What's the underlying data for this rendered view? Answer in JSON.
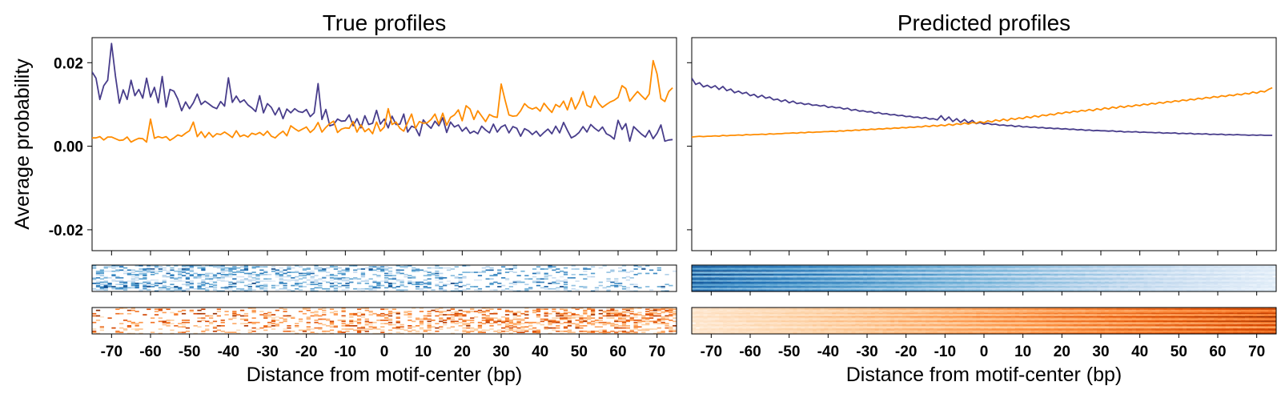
{
  "figure": {
    "panels": [
      {
        "title": "True profiles"
      },
      {
        "title": "Predicted profiles"
      }
    ],
    "ylabel": "Average probability",
    "xlabel": "Distance from motif-center (bp)"
  },
  "chart_data": [
    {
      "type": "line",
      "title": "True profiles",
      "xlabel": "Distance from motif-center (bp)",
      "ylabel": "Average probability",
      "xlim": [
        -75,
        75
      ],
      "ylim": [
        -0.025,
        0.026
      ],
      "xticks": [
        -70,
        -60,
        -50,
        -40,
        -30,
        -20,
        -10,
        0,
        10,
        20,
        30,
        40,
        50,
        60,
        70
      ],
      "yticks": [
        -0.02,
        0.0,
        0.02
      ],
      "ytick_labels": [
        "-0.02",
        "0.00",
        "0.02"
      ],
      "grid": false,
      "x": [
        -75,
        -74,
        -73,
        -72,
        -71,
        -70,
        -69,
        -68,
        -67,
        -66,
        -65,
        -64,
        -63,
        -62,
        -61,
        -60,
        -59,
        -58,
        -57,
        -56,
        -55,
        -54,
        -53,
        -52,
        -51,
        -50,
        -49,
        -48,
        -47,
        -46,
        -45,
        -44,
        -43,
        -42,
        -41,
        -40,
        -39,
        -38,
        -37,
        -36,
        -35,
        -34,
        -33,
        -32,
        -31,
        -30,
        -29,
        -28,
        -27,
        -26,
        -25,
        -24,
        -23,
        -22,
        -21,
        -20,
        -19,
        -18,
        -17,
        -16,
        -15,
        -14,
        -13,
        -12,
        -11,
        -10,
        -9,
        -8,
        -7,
        -6,
        -5,
        -4,
        -3,
        -2,
        -1,
        0,
        1,
        2,
        3,
        4,
        5,
        6,
        7,
        8,
        9,
        10,
        11,
        12,
        13,
        14,
        15,
        16,
        17,
        18,
        19,
        20,
        21,
        22,
        23,
        24,
        25,
        26,
        27,
        28,
        29,
        30,
        31,
        32,
        33,
        34,
        35,
        36,
        37,
        38,
        39,
        40,
        41,
        42,
        43,
        44,
        45,
        46,
        47,
        48,
        49,
        50,
        51,
        52,
        53,
        54,
        55,
        56,
        57,
        58,
        59,
        60,
        61,
        62,
        63,
        64,
        65,
        66,
        67,
        68,
        69,
        70,
        71,
        72,
        73,
        74
      ],
      "series": [
        {
          "color": "#483d8b",
          "values": [
            0.0178,
            0.0163,
            0.0112,
            0.0145,
            0.0158,
            0.0246,
            0.0168,
            0.0103,
            0.0135,
            0.0112,
            0.0158,
            0.0121,
            0.0136,
            0.0115,
            0.0163,
            0.0118,
            0.0141,
            0.0104,
            0.0167,
            0.0094,
            0.0136,
            0.0132,
            0.0113,
            0.0085,
            0.0106,
            0.009,
            0.0104,
            0.0125,
            0.01,
            0.0108,
            0.0101,
            0.0094,
            0.009,
            0.0107,
            0.0096,
            0.0164,
            0.0105,
            0.012,
            0.0105,
            0.0111,
            0.0099,
            0.0092,
            0.0083,
            0.0121,
            0.008,
            0.0102,
            0.0093,
            0.0075,
            0.0092,
            0.0066,
            0.0089,
            0.008,
            0.009,
            0.0083,
            0.0081,
            0.0088,
            0.0071,
            0.008,
            0.015,
            0.0064,
            0.0088,
            0.0049,
            0.0052,
            0.0065,
            0.006,
            0.0061,
            0.0075,
            0.0049,
            0.0066,
            0.0044,
            0.0073,
            0.0052,
            0.0055,
            0.0086,
            0.0053,
            0.0065,
            0.0044,
            0.0072,
            0.0052,
            0.0053,
            0.0077,
            0.0034,
            0.0048,
            0.0044,
            0.0025,
            0.0063,
            0.0052,
            0.0043,
            0.006,
            0.0049,
            0.0068,
            0.0033,
            0.0058,
            0.0046,
            0.0051,
            0.0036,
            0.0045,
            0.0031,
            0.0036,
            0.003,
            0.0048,
            0.0039,
            0.0032,
            0.0053,
            0.0034,
            0.0046,
            0.0051,
            0.0032,
            0.0047,
            0.0043,
            0.0024,
            0.0042,
            0.0037,
            0.0028,
            0.0036,
            0.0024,
            0.0033,
            0.0041,
            0.003,
            0.0048,
            0.0032,
            0.0057,
            0.0038,
            0.002,
            0.0025,
            0.0033,
            0.0047,
            0.0034,
            0.0052,
            0.0043,
            0.0036,
            0.0046,
            0.003,
            0.0025,
            0.0017,
            0.0062,
            0.004,
            0.0054,
            0.0012,
            0.0047,
            0.0038,
            0.0029,
            0.0022,
            0.0038,
            0.0018,
            0.0031,
            0.0051,
            0.0012,
            0.0015,
            0.0016
          ]
        },
        {
          "color": "#ff8c00",
          "values": [
            0.002,
            0.002,
            0.0023,
            0.0015,
            0.0022,
            0.0022,
            0.0018,
            0.0014,
            0.0015,
            0.0022,
            0.001,
            0.0015,
            0.0019,
            0.0018,
            0.001,
            0.0065,
            0.0019,
            0.0023,
            0.002,
            0.0023,
            0.0014,
            0.002,
            0.0027,
            0.0024,
            0.0031,
            0.0037,
            0.0058,
            0.0023,
            0.0035,
            0.0021,
            0.0033,
            0.0022,
            0.003,
            0.0028,
            0.0034,
            0.0028,
            0.0021,
            0.0037,
            0.0023,
            0.0027,
            0.0022,
            0.0031,
            0.0028,
            0.0033,
            0.0026,
            0.0036,
            0.0024,
            0.002,
            0.0029,
            0.0036,
            0.0025,
            0.0049,
            0.0042,
            0.0036,
            0.0041,
            0.0046,
            0.0033,
            0.0041,
            0.0057,
            0.0034,
            0.0045,
            0.0054,
            0.006,
            0.0033,
            0.0041,
            0.0044,
            0.0043,
            0.0059,
            0.0034,
            0.0051,
            0.0035,
            0.0042,
            0.003,
            0.0058,
            0.0036,
            0.0046,
            0.009,
            0.0052,
            0.0058,
            0.0043,
            0.0036,
            0.0057,
            0.0077,
            0.0043,
            0.0059,
            0.0055,
            0.0056,
            0.0064,
            0.0077,
            0.0053,
            0.0079,
            0.005,
            0.0069,
            0.0075,
            0.0087,
            0.0061,
            0.0097,
            0.0089,
            0.0064,
            0.0085,
            0.0072,
            0.0059,
            0.0076,
            0.0071,
            0.0069,
            0.0149,
            0.011,
            0.0075,
            0.0072,
            0.0073,
            0.0085,
            0.0102,
            0.0093,
            0.0089,
            0.0093,
            0.0084,
            0.0103,
            0.0091,
            0.0081,
            0.01,
            0.0094,
            0.0108,
            0.0087,
            0.0116,
            0.0089,
            0.0106,
            0.0131,
            0.0098,
            0.0093,
            0.012,
            0.0103,
            0.0093,
            0.01,
            0.0106,
            0.011,
            0.0117,
            0.0145,
            0.0138,
            0.0108,
            0.012,
            0.0131,
            0.0121,
            0.0112,
            0.0125,
            0.0205,
            0.0173,
            0.0114,
            0.0107,
            0.0131,
            0.014
          ]
        }
      ]
    },
    {
      "type": "line",
      "title": "Predicted profiles",
      "xlabel": "Distance from motif-center (bp)",
      "xlim": [
        -75,
        75
      ],
      "ylim": [
        -0.025,
        0.026
      ],
      "xticks": [
        -70,
        -60,
        -50,
        -40,
        -30,
        -20,
        -10,
        0,
        10,
        20,
        30,
        40,
        50,
        60,
        70
      ],
      "grid": false,
      "x": [
        -75,
        -74,
        -73,
        -72,
        -71,
        -70,
        -69,
        -68,
        -67,
        -66,
        -65,
        -64,
        -63,
        -62,
        -61,
        -60,
        -59,
        -58,
        -57,
        -56,
        -55,
        -54,
        -53,
        -52,
        -51,
        -50,
        -49,
        -48,
        -47,
        -46,
        -45,
        -44,
        -43,
        -42,
        -41,
        -40,
        -39,
        -38,
        -37,
        -36,
        -35,
        -34,
        -33,
        -32,
        -31,
        -30,
        -29,
        -28,
        -27,
        -26,
        -25,
        -24,
        -23,
        -22,
        -21,
        -20,
        -19,
        -18,
        -17,
        -16,
        -15,
        -14,
        -13,
        -12,
        -11,
        -10,
        -9,
        -8,
        -7,
        -6,
        -5,
        -4,
        -3,
        -2,
        -1,
        0,
        1,
        2,
        3,
        4,
        5,
        6,
        7,
        8,
        9,
        10,
        11,
        12,
        13,
        14,
        15,
        16,
        17,
        18,
        19,
        20,
        21,
        22,
        23,
        24,
        25,
        26,
        27,
        28,
        29,
        30,
        31,
        32,
        33,
        34,
        35,
        36,
        37,
        38,
        39,
        40,
        41,
        42,
        43,
        44,
        45,
        46,
        47,
        48,
        49,
        50,
        51,
        52,
        53,
        54,
        55,
        56,
        57,
        58,
        59,
        60,
        61,
        62,
        63,
        64,
        65,
        66,
        67,
        68,
        69,
        70,
        71,
        72,
        73,
        74
      ],
      "series": [
        {
          "color": "#483d8b",
          "values": [
            0.0163,
            0.0148,
            0.0152,
            0.0142,
            0.0146,
            0.014,
            0.0145,
            0.0136,
            0.0143,
            0.0133,
            0.0137,
            0.0128,
            0.0132,
            0.0126,
            0.0129,
            0.0121,
            0.0124,
            0.0117,
            0.0122,
            0.0115,
            0.0118,
            0.0111,
            0.0113,
            0.0107,
            0.0111,
            0.0104,
            0.0108,
            0.0102,
            0.0104,
            0.01,
            0.0102,
            0.0098,
            0.0099,
            0.0096,
            0.0098,
            0.0093,
            0.0095,
            0.0092,
            0.0093,
            0.0089,
            0.0091,
            0.0086,
            0.0088,
            0.0084,
            0.0085,
            0.0082,
            0.0083,
            0.0079,
            0.0081,
            0.0077,
            0.0078,
            0.0075,
            0.0076,
            0.0073,
            0.0074,
            0.0071,
            0.0072,
            0.0069,
            0.007,
            0.0067,
            0.0069,
            0.0065,
            0.0066,
            0.0063,
            0.0073,
            0.0062,
            0.007,
            0.0059,
            0.0066,
            0.0057,
            0.0064,
            0.0056,
            0.0062,
            0.0054,
            0.0057,
            0.0053,
            0.0055,
            0.0052,
            0.0053,
            0.005,
            0.0051,
            0.0049,
            0.005,
            0.0047,
            0.0049,
            0.0046,
            0.0047,
            0.0045,
            0.0046,
            0.0044,
            0.0045,
            0.0043,
            0.0044,
            0.0042,
            0.0043,
            0.0041,
            0.0042,
            0.004,
            0.0041,
            0.0039,
            0.004,
            0.0038,
            0.0039,
            0.0037,
            0.0038,
            0.0037,
            0.0037,
            0.0036,
            0.0037,
            0.0035,
            0.0036,
            0.0034,
            0.0035,
            0.0034,
            0.0035,
            0.0033,
            0.0034,
            0.0033,
            0.0033,
            0.0032,
            0.0033,
            0.0031,
            0.0032,
            0.0031,
            0.0032,
            0.003,
            0.0031,
            0.003,
            0.0031,
            0.0029,
            0.003,
            0.0029,
            0.003,
            0.0028,
            0.0029,
            0.0028,
            0.0029,
            0.0027,
            0.0028,
            0.0027,
            0.0028,
            0.0027,
            0.0027,
            0.0026,
            0.0027,
            0.0026,
            0.0027,
            0.0026,
            0.0026,
            0.0026
          ]
        },
        {
          "color": "#ff8c00",
          "values": [
            0.0022,
            0.0023,
            0.0024,
            0.0023,
            0.0024,
            0.0024,
            0.0025,
            0.0024,
            0.0026,
            0.0025,
            0.0026,
            0.0026,
            0.0027,
            0.0026,
            0.0028,
            0.0027,
            0.0028,
            0.0028,
            0.0029,
            0.0028,
            0.003,
            0.0029,
            0.003,
            0.003,
            0.0031,
            0.0031,
            0.0032,
            0.0031,
            0.0033,
            0.0032,
            0.0034,
            0.0033,
            0.0034,
            0.0034,
            0.0035,
            0.0035,
            0.0036,
            0.0035,
            0.0037,
            0.0036,
            0.0038,
            0.0037,
            0.0039,
            0.0038,
            0.004,
            0.0039,
            0.0041,
            0.004,
            0.0042,
            0.0041,
            0.0043,
            0.0042,
            0.0044,
            0.0043,
            0.0045,
            0.0044,
            0.0046,
            0.0045,
            0.0047,
            0.0046,
            0.0049,
            0.0047,
            0.005,
            0.0048,
            0.0051,
            0.0049,
            0.0053,
            0.005,
            0.0054,
            0.0052,
            0.0056,
            0.0053,
            0.0057,
            0.0055,
            0.0059,
            0.0056,
            0.0061,
            0.0058,
            0.0063,
            0.006,
            0.0065,
            0.0061,
            0.0067,
            0.0064,
            0.0068,
            0.0066,
            0.0071,
            0.0068,
            0.0073,
            0.007,
            0.0075,
            0.0073,
            0.0077,
            0.0075,
            0.008,
            0.0078,
            0.0082,
            0.008,
            0.0084,
            0.0082,
            0.0086,
            0.0084,
            0.0088,
            0.0085,
            0.009,
            0.0087,
            0.0092,
            0.0089,
            0.0094,
            0.0091,
            0.0096,
            0.0093,
            0.0097,
            0.0095,
            0.0099,
            0.0097,
            0.0101,
            0.0099,
            0.0103,
            0.0101,
            0.0105,
            0.0103,
            0.0107,
            0.0105,
            0.0109,
            0.0107,
            0.0111,
            0.0109,
            0.0113,
            0.0111,
            0.0115,
            0.0113,
            0.0117,
            0.0115,
            0.0119,
            0.0117,
            0.0121,
            0.0119,
            0.0123,
            0.0121,
            0.0125,
            0.0123,
            0.0127,
            0.0125,
            0.013,
            0.0127,
            0.0132,
            0.013,
            0.0136,
            0.014
          ]
        }
      ]
    },
    {
      "type": "heatmap",
      "panel": "True profiles",
      "colormap": "Blues",
      "rows": 24,
      "cols": 150,
      "description_trend": "intensity concentrated at negative distances, fading toward positive"
    },
    {
      "type": "heatmap",
      "panel": "True profiles",
      "colormap": "Oranges",
      "rows": 24,
      "cols": 150,
      "description_trend": "intensity increasing toward positive distances"
    },
    {
      "type": "heatmap",
      "panel": "Predicted profiles",
      "colormap": "Blues",
      "rows": 24,
      "cols": 150,
      "description_trend": "smooth gradient, dark at left fading to right"
    },
    {
      "type": "heatmap",
      "panel": "Predicted profiles",
      "colormap": "Oranges",
      "rows": 24,
      "cols": 150,
      "description_trend": "smooth gradient, light at left darkening to right"
    }
  ]
}
